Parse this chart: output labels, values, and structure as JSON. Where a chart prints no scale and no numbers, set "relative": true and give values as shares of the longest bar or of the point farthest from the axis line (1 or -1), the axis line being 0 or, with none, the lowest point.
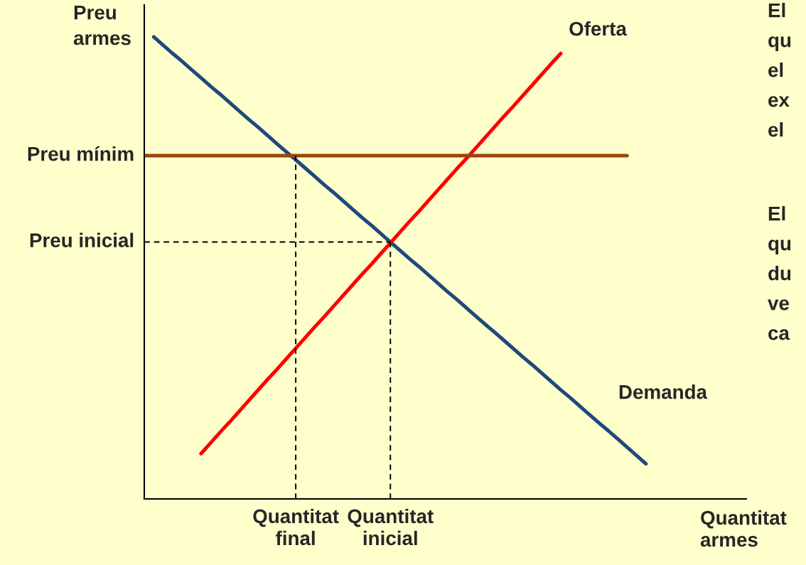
{
  "chart_data": {
    "type": "line",
    "relative": true,
    "ylabel": "Preu\narmes",
    "xlabel": "Quantitat\narmes",
    "categories": [
      null,
      null,
      null,
      null,
      null,
      null,
      null,
      null,
      null,
      null,
      null,
      null,
      null,
      null,
      null,
      null,
      "Quantitat\nfinal",
      null,
      null,
      null,
      null,
      null,
      null,
      null,
      null,
      null,
      "Quantitat\ninicial",
      null,
      null,
      null,
      null,
      null,
      null,
      null,
      null,
      null,
      null,
      null,
      null,
      null,
      null,
      null,
      null,
      null,
      null,
      null,
      null,
      null,
      null,
      null,
      null,
      null,
      null,
      null,
      null,
      null,
      null,
      null,
      null,
      null,
      null,
      null,
      null,
      null
    ],
    "series": [
      {
        "name": "Demanda",
        "color": "#1f497d",
        "values": [
          null,
          1.0,
          0.982,
          0.964,
          0.947,
          0.929,
          0.911,
          0.893,
          0.876,
          0.858,
          0.84,
          0.822,
          0.805,
          0.787,
          0.769,
          0.751,
          0.734,
          0.716,
          0.698,
          0.68,
          0.663,
          0.645,
          0.627,
          0.609,
          0.592,
          0.574,
          0.556,
          0.538,
          0.52,
          0.503,
          0.485,
          0.467,
          0.449,
          0.432,
          0.414,
          0.396,
          0.378,
          0.361,
          0.343,
          0.325,
          0.307,
          0.29,
          0.272,
          0.254,
          0.236,
          0.219,
          0.201,
          0.183,
          0.165,
          0.148,
          0.13,
          0.112,
          0.094,
          0.076,
          null,
          null,
          null,
          null,
          null,
          null,
          null,
          null,
          null,
          null
        ]
      },
      {
        "name": "Oferta",
        "color": "#ff0000",
        "values": [
          null,
          null,
          null,
          null,
          null,
          null,
          0.098,
          0.121,
          0.144,
          0.166,
          0.189,
          0.212,
          0.235,
          0.258,
          0.28,
          0.303,
          0.326,
          0.349,
          0.372,
          0.394,
          0.417,
          0.44,
          0.463,
          0.486,
          0.508,
          0.531,
          0.554,
          0.577,
          0.6,
          0.622,
          0.645,
          0.668,
          0.691,
          0.714,
          0.736,
          0.759,
          0.782,
          0.805,
          0.828,
          0.85,
          0.873,
          0.896,
          0.919,
          0.942,
          0.964,
          null,
          null,
          null,
          null,
          null,
          null,
          null,
          null,
          null,
          null,
          null,
          null,
          null,
          null,
          null,
          null,
          null,
          null,
          null
        ]
      },
      {
        "name": "Preu mínim",
        "color": "#984807",
        "values": [
          0.743,
          0.743,
          0.743,
          0.743,
          0.743,
          0.743,
          0.743,
          0.743,
          0.743,
          0.743,
          0.743,
          0.743,
          0.743,
          0.743,
          0.743,
          0.743,
          0.743,
          0.743,
          0.743,
          0.743,
          0.743,
          0.743,
          0.743,
          0.743,
          0.743,
          0.743,
          0.743,
          0.743,
          0.743,
          0.743,
          0.743,
          0.743,
          0.743,
          0.743,
          0.743,
          0.743,
          0.743,
          0.743,
          0.743,
          0.743,
          0.743,
          0.743,
          0.743,
          0.743,
          0.743,
          0.743,
          0.743,
          0.743,
          0.743,
          0.743,
          0.743,
          0.743,
          null,
          null,
          null,
          null,
          null,
          null,
          null,
          null,
          null,
          null,
          null,
          null
        ]
      },
      {
        "name": "Preu inicial",
        "color": "#000000",
        "line_style": "dashed",
        "values": [
          0.556,
          0.556,
          0.556,
          0.556,
          0.556,
          0.556,
          0.556,
          0.556,
          0.556,
          0.556,
          0.556,
          0.556,
          0.556,
          0.556,
          0.556,
          0.556,
          0.556,
          0.556,
          0.556,
          0.556,
          0.556,
          0.556,
          0.556,
          0.556,
          0.556,
          0.556,
          0.556,
          null,
          null,
          null,
          null,
          null,
          null,
          null,
          null,
          null,
          null,
          null,
          null,
          null,
          null,
          null,
          null,
          null,
          null,
          null,
          null,
          null,
          null,
          null,
          null,
          null,
          null,
          null,
          null,
          null,
          null,
          null,
          null,
          null,
          null,
          null,
          null,
          null
        ]
      },
      {
        "color": "#000000",
        "line_style": "dashed",
        "x": [
          "Quantitat\nfinal",
          "Quantitat\nfinal"
        ],
        "values": [
          0,
          0.743
        ]
      },
      {
        "color": "#000000",
        "line_style": "dashed",
        "x": [
          "Quantitat\ninicial",
          "Quantitat\ninicial"
        ],
        "values": [
          0,
          0.556
        ]
      }
    ],
    "annotations": [
      "El\nqu\nel\nex\nel",
      "El\nqu\ndu\nve\nca"
    ]
  }
}
